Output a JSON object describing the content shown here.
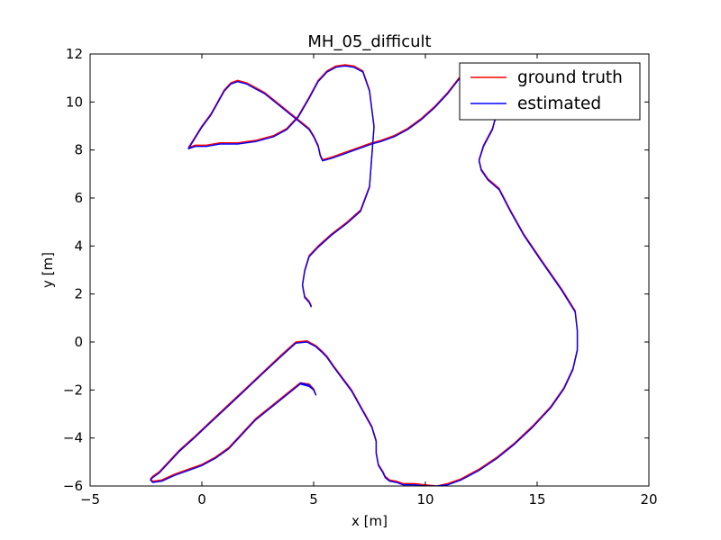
{
  "chart_data": {
    "type": "line",
    "title": "MH_05_difficult",
    "xlabel": "x [m]",
    "ylabel": "y [m]",
    "xlim": [
      -5,
      20
    ],
    "ylim": [
      -6,
      12
    ],
    "xticks": [
      -5,
      0,
      5,
      10,
      15,
      20
    ],
    "yticks": [
      -6,
      -4,
      -2,
      0,
      2,
      4,
      6,
      8,
      10,
      12
    ],
    "grid": false,
    "legend_position": "top-right",
    "series": [
      {
        "name": "ground truth",
        "color": "#ff0000",
        "x": [
          4.4,
          4.8,
          5.0,
          5.1,
          5.0,
          4.8,
          4.4,
          4.0,
          3.6,
          3.2,
          2.8,
          2.4,
          2.0,
          1.6,
          1.2,
          0.6,
          0.0,
          -0.6,
          -1.2,
          -1.8,
          -2.2,
          -2.3,
          -2.2,
          -1.9,
          -1.5,
          -1.0,
          -0.4,
          0.4,
          1.2,
          2.0,
          2.8,
          3.6,
          4.2,
          4.7,
          5.1,
          5.4,
          5.6,
          5.9,
          6.3,
          6.7,
          7.0,
          7.3,
          7.6,
          7.8,
          7.8,
          7.9,
          8.1,
          8.2,
          8.4,
          8.7,
          9.0,
          9.5,
          10.0,
          10.5,
          11.0,
          11.6,
          12.4,
          13.2,
          14.0,
          14.8,
          15.6,
          16.2,
          16.6,
          16.8,
          16.8,
          16.7,
          16.1,
          15.2,
          14.4,
          13.8,
          13.3,
          12.8,
          12.5,
          12.4,
          12.6,
          13.0,
          13.2,
          13.0,
          12.7,
          12.4,
          12.0,
          11.5,
          11.0,
          10.4,
          9.8,
          9.2,
          8.6,
          8.0,
          7.6,
          7.3,
          7.0,
          6.4,
          5.8,
          5.4,
          5.3,
          5.2,
          5.0,
          4.8,
          4.4,
          4.0,
          3.6,
          3.2,
          2.8,
          2.4,
          2.0,
          1.6,
          1.3,
          1.0,
          0.7,
          0.4,
          0.0,
          -0.4,
          -0.6,
          -0.3,
          0.2,
          0.8,
          1.6,
          2.4,
          3.2,
          3.8,
          4.3,
          4.8,
          5.2,
          5.6,
          6.0,
          6.4,
          6.8,
          7.2,
          7.5,
          7.7,
          7.5,
          7.1,
          6.5,
          5.8,
          5.2,
          4.8,
          4.6,
          4.5,
          4.6,
          4.8,
          4.9
        ],
        "y": [
          -1.7,
          -1.75,
          -1.95,
          -2.2,
          -2.0,
          -1.8,
          -1.7,
          -2.0,
          -2.3,
          -2.6,
          -2.9,
          -3.2,
          -3.6,
          -4.0,
          -4.4,
          -4.8,
          -5.1,
          -5.3,
          -5.5,
          -5.75,
          -5.8,
          -5.7,
          -5.6,
          -5.4,
          -5.0,
          -4.5,
          -4.0,
          -3.3,
          -2.6,
          -1.9,
          -1.2,
          -0.5,
          0.0,
          0.05,
          -0.15,
          -0.4,
          -0.6,
          -1.0,
          -1.5,
          -2.0,
          -2.5,
          -3.0,
          -3.5,
          -4.1,
          -4.6,
          -5.1,
          -5.4,
          -5.6,
          -5.75,
          -5.8,
          -5.9,
          -5.9,
          -5.95,
          -6.0,
          -5.9,
          -5.7,
          -5.3,
          -4.8,
          -4.2,
          -3.5,
          -2.7,
          -1.9,
          -1.1,
          -0.3,
          0.5,
          1.3,
          2.2,
          3.4,
          4.5,
          5.5,
          6.4,
          6.8,
          7.2,
          7.6,
          8.2,
          8.9,
          9.6,
          10.3,
          10.9,
          11.3,
          11.4,
          11.0,
          10.4,
          9.8,
          9.3,
          8.9,
          8.6,
          8.4,
          8.3,
          8.2,
          8.1,
          7.9,
          7.7,
          7.6,
          7.8,
          8.2,
          8.6,
          8.9,
          9.2,
          9.5,
          9.8,
          10.1,
          10.4,
          10.6,
          10.8,
          10.9,
          10.8,
          10.5,
          10.0,
          9.5,
          9.0,
          8.4,
          8.1,
          8.2,
          8.2,
          8.3,
          8.3,
          8.4,
          8.6,
          8.9,
          9.4,
          10.2,
          10.9,
          11.3,
          11.5,
          11.55,
          11.5,
          11.3,
          10.5,
          9.0,
          6.5,
          5.5,
          5.0,
          4.5,
          4.0,
          3.6,
          3.0,
          2.4,
          1.9,
          1.7,
          1.5
        ]
      },
      {
        "name": "estimated",
        "color": "#0000ff",
        "x": [
          4.4,
          4.8,
          5.0,
          5.1,
          5.0,
          4.8,
          4.4,
          4.0,
          3.6,
          3.2,
          2.8,
          2.4,
          2.0,
          1.6,
          1.2,
          0.6,
          0.0,
          -0.6,
          -1.2,
          -1.8,
          -2.2,
          -2.3,
          -2.2,
          -1.9,
          -1.5,
          -1.0,
          -0.4,
          0.4,
          1.2,
          2.0,
          2.8,
          3.6,
          4.2,
          4.7,
          5.1,
          5.4,
          5.6,
          5.9,
          6.3,
          6.7,
          7.0,
          7.3,
          7.6,
          7.8,
          7.8,
          7.9,
          8.1,
          8.2,
          8.4,
          8.7,
          9.0,
          9.5,
          10.0,
          10.5,
          11.0,
          11.6,
          12.4,
          13.2,
          14.0,
          14.8,
          15.6,
          16.2,
          16.6,
          16.8,
          16.8,
          16.7,
          16.1,
          15.2,
          14.4,
          13.8,
          13.3,
          12.8,
          12.5,
          12.4,
          12.6,
          13.0,
          13.2,
          13.0,
          12.7,
          12.4,
          12.0,
          11.5,
          11.0,
          10.4,
          9.8,
          9.2,
          8.6,
          8.0,
          7.6,
          7.3,
          7.0,
          6.4,
          5.8,
          5.4,
          5.3,
          5.2,
          5.0,
          4.8,
          4.4,
          4.0,
          3.6,
          3.2,
          2.8,
          2.4,
          2.0,
          1.6,
          1.3,
          1.0,
          0.7,
          0.4,
          0.0,
          -0.4,
          -0.6,
          -0.3,
          0.2,
          0.8,
          1.6,
          2.4,
          3.2,
          3.8,
          4.3,
          4.8,
          5.2,
          5.6,
          6.0,
          6.4,
          6.8,
          7.2,
          7.5,
          7.7,
          7.5,
          7.1,
          6.5,
          5.8,
          5.2,
          4.8,
          4.6,
          4.5,
          4.6,
          4.8,
          4.9
        ],
        "y": [
          -1.7,
          -1.8,
          -2.0,
          -2.2,
          -2.0,
          -1.85,
          -1.75,
          -2.05,
          -2.35,
          -2.65,
          -2.95,
          -3.25,
          -3.65,
          -4.05,
          -4.45,
          -4.85,
          -5.15,
          -5.35,
          -5.55,
          -5.8,
          -5.85,
          -5.75,
          -5.65,
          -5.45,
          -5.05,
          -4.55,
          -4.05,
          -3.35,
          -2.65,
          -1.95,
          -1.25,
          -0.55,
          -0.05,
          0.0,
          -0.2,
          -0.45,
          -0.65,
          -1.05,
          -1.55,
          -2.05,
          -2.55,
          -3.05,
          -3.55,
          -4.15,
          -4.65,
          -5.15,
          -5.45,
          -5.65,
          -5.8,
          -5.85,
          -5.95,
          -5.95,
          -6.0,
          -6.0,
          -5.95,
          -5.75,
          -5.35,
          -4.85,
          -4.25,
          -3.55,
          -2.75,
          -1.95,
          -1.15,
          -0.35,
          0.45,
          1.25,
          2.15,
          3.35,
          4.45,
          5.45,
          6.35,
          6.75,
          7.15,
          7.55,
          8.15,
          8.85,
          9.55,
          10.25,
          10.85,
          11.25,
          11.35,
          10.95,
          10.35,
          9.75,
          9.25,
          8.85,
          8.55,
          8.35,
          8.25,
          8.15,
          8.05,
          7.85,
          7.65,
          7.55,
          7.75,
          8.15,
          8.55,
          8.85,
          9.15,
          9.45,
          9.75,
          10.05,
          10.35,
          10.55,
          10.75,
          10.85,
          10.75,
          10.45,
          9.95,
          9.45,
          8.95,
          8.35,
          8.05,
          8.15,
          8.15,
          8.25,
          8.25,
          8.35,
          8.55,
          8.85,
          9.35,
          10.15,
          10.85,
          11.25,
          11.45,
          11.5,
          11.45,
          11.25,
          10.45,
          8.95,
          6.45,
          5.45,
          4.95,
          4.45,
          3.95,
          3.55,
          2.95,
          2.35,
          1.85,
          1.65,
          1.45
        ]
      }
    ]
  }
}
